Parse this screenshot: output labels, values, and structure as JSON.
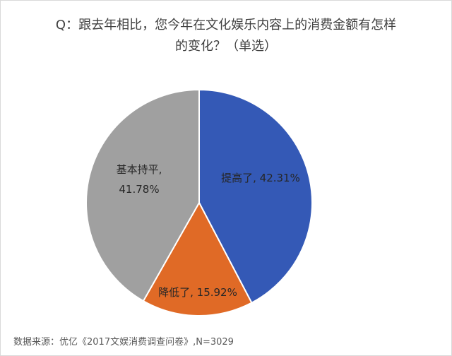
{
  "chart_data": {
    "type": "pie",
    "title_line1": "Q：跟去年相比，您今年在文化娱乐内容上的消费金额有怎样",
    "title_line2": "的变化？（单选）",
    "slices": [
      {
        "name": "提高了",
        "value": 42.31,
        "label_line1": "提高了, 42.31%",
        "label_line2": "",
        "color": "#3459B6"
      },
      {
        "name": "降低了",
        "value": 15.92,
        "label_line1": "降低了, 15.92%",
        "label_line2": "",
        "color": "#E06A26"
      },
      {
        "name": "基本持平",
        "value": 41.78,
        "label_line1": "基本持平,",
        "label_line2": "41.78%",
        "color": "#A0A0A0"
      }
    ],
    "start_angle": "12 o'clock, clockwise"
  },
  "source": "数据来源：优亿《2017文娱消费调查问卷》,N=3029"
}
